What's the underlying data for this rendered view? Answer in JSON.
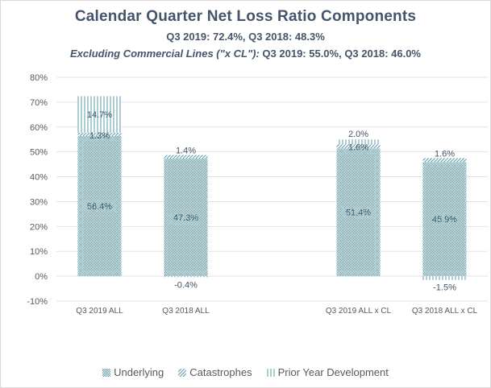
{
  "chart_data": {
    "type": "bar",
    "stacked": true,
    "title": "Calendar Quarter Net Loss Ratio Components",
    "subtitle": "Q3 2019: 72.4%, Q3 2018: 48.3%",
    "subtitle2_italic": "Excluding Commercial Lines (\"x CL\"):",
    "subtitle2_rest": "Q3 2019: 55.0%, Q3 2018: 46.0%",
    "xlabel": "",
    "ylabel": "",
    "ylim": [
      -10,
      80
    ],
    "yticks": [
      "-10%",
      "0%",
      "10%",
      "20%",
      "30%",
      "40%",
      "50%",
      "60%",
      "70%",
      "80%"
    ],
    "ytick_values": [
      -10,
      0,
      10,
      20,
      30,
      40,
      50,
      60,
      70,
      80
    ],
    "grid": true,
    "legend_position": "bottom",
    "categories": [
      "Q3 2019 ALL",
      "Q3 2018 ALL",
      "",
      "Q3 2019 ALL x CL",
      "Q3 2018 ALL x CL"
    ],
    "series": [
      {
        "name": "Underlying",
        "color": "#5b9bab",
        "values": [
          56.4,
          47.3,
          null,
          51.4,
          45.9
        ],
        "labels": [
          "56.4%",
          "47.3%",
          "",
          "51.4%",
          "45.9%"
        ]
      },
      {
        "name": "Catastrophes",
        "color": "#5b9bab",
        "values": [
          1.3,
          1.4,
          null,
          1.6,
          1.6
        ],
        "labels": [
          "1.3%",
          "1.4%",
          "",
          "1.6%",
          "1.6%"
        ]
      },
      {
        "name": "Prior Year Development",
        "color": "#5b9bab",
        "values": [
          14.7,
          -0.4,
          null,
          2.0,
          -1.5
        ],
        "labels": [
          "14.7%",
          "-0.4%",
          "",
          "2.0%",
          "-1.5%"
        ]
      }
    ]
  }
}
